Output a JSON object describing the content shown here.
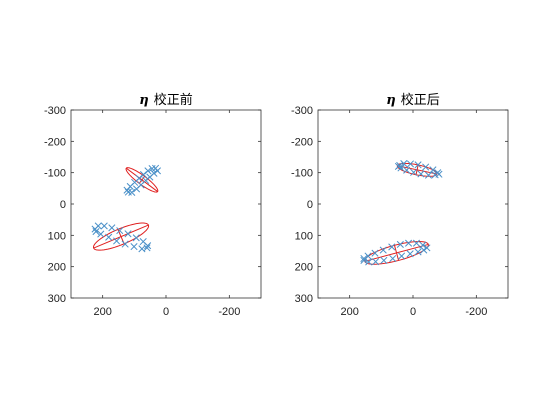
{
  "chart_data": [
    {
      "type": "scatter",
      "title_symbol": "η",
      "title_text": "校正前",
      "xlim": [
        300,
        -300
      ],
      "ylim": [
        -300,
        300
      ],
      "x_ticks": [
        200,
        0,
        -200
      ],
      "y_ticks": [
        -300,
        -200,
        -100,
        0,
        100,
        200,
        300
      ],
      "x_reversed": true,
      "y_reversed": true,
      "grid": false,
      "marker_color": "#4a90c8",
      "fit_color": "#e02020",
      "series": [
        {
          "ellipse": {
            "cx": 76,
            "cy": -77,
            "a": 62,
            "b": 14,
            "angle_deg": -37
          },
          "points": [
            [
              44,
              -113
            ],
            [
              33,
              -114
            ],
            [
              27,
              -106
            ],
            [
              38,
              -98
            ],
            [
              51,
              -86
            ],
            [
              64,
              -75
            ],
            [
              79,
              -61
            ],
            [
              93,
              -48
            ],
            [
              108,
              -37
            ],
            [
              119,
              -38
            ],
            [
              123,
              -44
            ],
            [
              113,
              -56
            ],
            [
              99,
              -69
            ],
            [
              85,
              -82
            ],
            [
              71,
              -94
            ],
            [
              57,
              -106
            ]
          ]
        },
        {
          "ellipse": {
            "cx": 142,
            "cy": 104,
            "a": 94,
            "b": 25,
            "angle_deg": 23
          },
          "points": [
            [
              224,
              80
            ],
            [
              214,
              70
            ],
            [
              195,
              70
            ],
            [
              171,
              76
            ],
            [
              146,
              85
            ],
            [
              120,
              95
            ],
            [
              94,
              108
            ],
            [
              72,
              120
            ],
            [
              58,
              133
            ],
            [
              60,
              140
            ],
            [
              76,
              143
            ],
            [
              101,
              136
            ],
            [
              129,
              128
            ],
            [
              156,
              118
            ],
            [
              181,
              106
            ],
            [
              206,
              96
            ],
            [
              221,
              88
            ]
          ]
        }
      ]
    },
    {
      "type": "scatter",
      "title_symbol": "η",
      "title_text": "校正后",
      "xlim": [
        300,
        -300
      ],
      "ylim": [
        -300,
        300
      ],
      "x_ticks": [
        200,
        0,
        -200
      ],
      "y_ticks": [
        -300,
        -200,
        -100,
        0,
        100,
        200,
        300
      ],
      "x_reversed": true,
      "y_reversed": true,
      "grid": false,
      "marker_color": "#4a90c8",
      "fit_color": "#e02020",
      "series": [
        {
          "ellipse": {
            "cx": -13,
            "cy": -109,
            "a": 64,
            "b": 16,
            "angle_deg": -12
          },
          "points": [
            [
              42,
              -123
            ],
            [
              29,
              -129
            ],
            [
              8,
              -128
            ],
            [
              -16,
              -125
            ],
            [
              -40,
              -118
            ],
            [
              -63,
              -109
            ],
            [
              -78,
              -100
            ],
            [
              -82,
              -95
            ],
            [
              -70,
              -93
            ],
            [
              -49,
              -92
            ],
            [
              -25,
              -96
            ],
            [
              -2,
              -101
            ],
            [
              20,
              -108
            ],
            [
              38,
              -115
            ],
            [
              46,
              -120
            ]
          ]
        },
        {
          "ellipse": {
            "cx": 52,
            "cy": 156,
            "a": 104,
            "b": 25,
            "angle_deg": 15
          },
          "points": [
            [
              -44,
              140
            ],
            [
              -31,
              131
            ],
            [
              -11,
              125
            ],
            [
              14,
              125
            ],
            [
              40,
              129
            ],
            [
              67,
              137
            ],
            [
              94,
              147
            ],
            [
              120,
              157
            ],
            [
              142,
              166
            ],
            [
              155,
              174
            ],
            [
              155,
              180
            ],
            [
              140,
              185
            ],
            [
              118,
              184
            ],
            [
              92,
              180
            ],
            [
              64,
              174
            ],
            [
              36,
              166
            ],
            [
              9,
              159
            ],
            [
              -16,
              153
            ],
            [
              -34,
              147
            ]
          ]
        }
      ]
    }
  ]
}
